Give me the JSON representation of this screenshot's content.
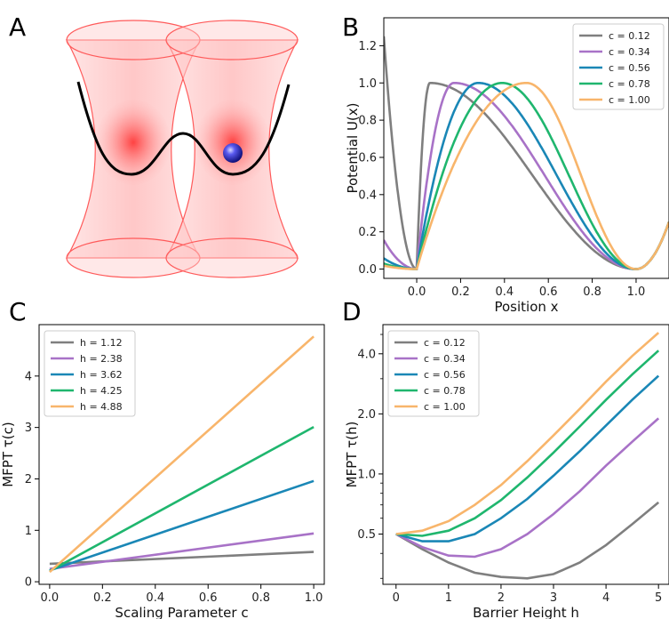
{
  "panel_labels": [
    "A",
    "B",
    "C",
    "D"
  ],
  "colors": {
    "grey": "#7f7f7f",
    "purple": "#a872c7",
    "blue": "#1a87b6",
    "green": "#1fb66e",
    "orange": "#f8b56b"
  },
  "chart_data": [
    {
      "panel": "B",
      "type": "line",
      "xlabel": "Position x",
      "ylabel": "Potential U(x)",
      "xlim": [
        -0.15,
        1.15
      ],
      "ylim": [
        -0.05,
        1.35
      ],
      "xticks": [
        "0.0",
        "0.2",
        "0.4",
        "0.6",
        "0.8",
        "1.0"
      ],
      "yticks": [
        "0.0",
        "0.2",
        "0.4",
        "0.6",
        "0.8",
        "1.0",
        "1.2"
      ],
      "legend_position": "top-right",
      "series": [
        {
          "name": "c = 0.12",
          "c": 0.12,
          "color": "#7f7f7f"
        },
        {
          "name": "c = 0.34",
          "c": 0.34,
          "color": "#a872c7"
        },
        {
          "name": "c = 0.56",
          "c": 0.56,
          "color": "#1a87b6"
        },
        {
          "name": "c = 0.78",
          "c": 0.78,
          "color": "#1fb66e"
        },
        {
          "name": "c = 1.00",
          "c": 1.0,
          "color": "#f8b56b"
        }
      ]
    },
    {
      "panel": "C",
      "type": "line",
      "xlabel": "Scaling Parameter c",
      "ylabel": "MFPT τ(c)",
      "xlim": [
        -0.04,
        1.04
      ],
      "ylim": [
        -0.05,
        5.0
      ],
      "xticks": [
        "0.0",
        "0.2",
        "0.4",
        "0.6",
        "0.8",
        "1.0"
      ],
      "yticks": [
        "0",
        "1",
        "2",
        "3",
        "4"
      ],
      "legend_position": "top-left",
      "series": [
        {
          "name": "h = 1.12",
          "color": "#7f7f7f",
          "x": [
            0.0,
            1.0
          ],
          "y": [
            0.35,
            0.58
          ]
        },
        {
          "name": "h = 2.38",
          "color": "#a872c7",
          "x": [
            0.0,
            1.0
          ],
          "y": [
            0.25,
            0.94
          ]
        },
        {
          "name": "h = 3.62",
          "color": "#1a87b6",
          "x": [
            0.0,
            1.0
          ],
          "y": [
            0.22,
            1.96
          ]
        },
        {
          "name": "h = 4.25",
          "color": "#1fb66e",
          "x": [
            0.0,
            1.0
          ],
          "y": [
            0.21,
            3.01
          ]
        },
        {
          "name": "h = 4.88",
          "color": "#f8b56b",
          "x": [
            0.0,
            1.0
          ],
          "y": [
            0.19,
            4.77
          ]
        }
      ]
    },
    {
      "panel": "D",
      "type": "line",
      "xlabel": "Barrier Height h",
      "ylabel": "MFPT τ(h)",
      "scale_y": "log",
      "xlim": [
        -0.25,
        5.2
      ],
      "ylim": [
        0.28,
        5.6
      ],
      "xticks": [
        "0",
        "1",
        "2",
        "3",
        "4",
        "5"
      ],
      "yticks": [
        "0.5",
        "1.0",
        "2.0",
        "4.0"
      ],
      "ytick_values": [
        0.5,
        1.0,
        2.0,
        4.0
      ],
      "legend_position": "top-left",
      "series": [
        {
          "name": "c = 0.12",
          "color": "#7f7f7f",
          "x": [
            0,
            0.5,
            1.0,
            1.5,
            2.0,
            2.5,
            3.0,
            3.5,
            4.0,
            4.5,
            5.0
          ],
          "y": [
            0.5,
            0.42,
            0.36,
            0.32,
            0.305,
            0.3,
            0.315,
            0.36,
            0.44,
            0.56,
            0.72
          ]
        },
        {
          "name": "c = 0.34",
          "color": "#a872c7",
          "x": [
            0,
            0.5,
            1.0,
            1.5,
            2.0,
            2.5,
            3.0,
            3.5,
            4.0,
            4.5,
            5.0
          ],
          "y": [
            0.5,
            0.43,
            0.39,
            0.385,
            0.42,
            0.5,
            0.63,
            0.82,
            1.1,
            1.45,
            1.9
          ]
        },
        {
          "name": "c = 0.56",
          "color": "#1a87b6",
          "x": [
            0,
            0.5,
            1.0,
            1.5,
            2.0,
            2.5,
            3.0,
            3.5,
            4.0,
            4.5,
            5.0
          ],
          "y": [
            0.5,
            0.46,
            0.46,
            0.5,
            0.6,
            0.75,
            0.98,
            1.3,
            1.75,
            2.35,
            3.1
          ]
        },
        {
          "name": "c = 0.78",
          "color": "#1fb66e",
          "x": [
            0,
            0.5,
            1.0,
            1.5,
            2.0,
            2.5,
            3.0,
            3.5,
            4.0,
            4.5,
            5.0
          ],
          "y": [
            0.5,
            0.49,
            0.52,
            0.6,
            0.74,
            0.96,
            1.28,
            1.73,
            2.35,
            3.15,
            4.15
          ]
        },
        {
          "name": "c = 1.00",
          "color": "#f8b56b",
          "x": [
            0,
            0.5,
            1.0,
            1.5,
            2.0,
            2.5,
            3.0,
            3.5,
            4.0,
            4.5,
            5.0
          ],
          "y": [
            0.5,
            0.52,
            0.58,
            0.7,
            0.88,
            1.16,
            1.56,
            2.12,
            2.9,
            3.9,
            5.1
          ]
        }
      ]
    }
  ]
}
